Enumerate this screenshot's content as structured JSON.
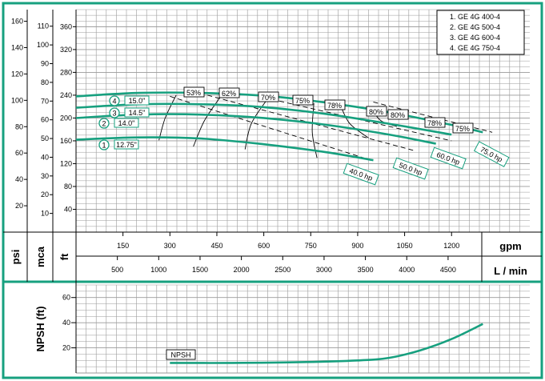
{
  "colors": {
    "frame": "#17a07f",
    "curve": "#17a07f",
    "grid": "#9a9a9a",
    "black": "#000000"
  },
  "legend": {
    "items": [
      "1. GE 4G 400-4",
      "2. GE 4G 500-4",
      "3. GE 4G 600-4",
      "4. GE 4G 750-4"
    ]
  },
  "axes": {
    "psi": {
      "label": "psi",
      "ticks": [
        "160",
        "140",
        "120",
        "100",
        "80",
        "60",
        "40",
        "20"
      ],
      "values": [
        160,
        140,
        120,
        100,
        80,
        60,
        40,
        20
      ]
    },
    "mca": {
      "label": "mca",
      "ticks": [
        "110",
        "100",
        "90",
        "80",
        "70",
        "60",
        "50",
        "40",
        "30",
        "20",
        "10"
      ],
      "values": [
        110,
        100,
        90,
        80,
        70,
        60,
        50,
        40,
        30,
        20,
        10
      ]
    },
    "ft": {
      "label": "ft",
      "ticks": [
        "360",
        "320",
        "280",
        "240",
        "200",
        "160",
        "120",
        "80",
        "40"
      ],
      "values": [
        360,
        320,
        280,
        240,
        200,
        160,
        120,
        80,
        40
      ]
    },
    "gpm": {
      "label": "gpm",
      "ticks": [
        "150",
        "300",
        "450",
        "600",
        "750",
        "900",
        "1050",
        "1200"
      ],
      "values": [
        150,
        300,
        450,
        600,
        750,
        900,
        1050,
        1200
      ]
    },
    "lmin": {
      "label": "L / min",
      "ticks": [
        "500",
        "1000",
        "1500",
        "2000",
        "2500",
        "3000",
        "3500",
        "4000",
        "4500"
      ],
      "values": [
        500,
        1000,
        1500,
        2000,
        2500,
        3000,
        3500,
        4000,
        4500
      ]
    },
    "npsh": {
      "label": "NPSH (ft)",
      "ticks": [
        "60",
        "40",
        "20"
      ],
      "values": [
        60,
        40,
        20
      ]
    }
  },
  "chart_data": [
    {
      "type": "line",
      "title": "",
      "xlabel": "gpm",
      "ylabel": "ft",
      "xlim": [
        0,
        1450
      ],
      "ylim": [
        0,
        390
      ],
      "grid": true,
      "legend_position": "top-right",
      "series": [
        {
          "name": "1",
          "impeller": "12.75\"",
          "x": [
            0,
            200,
            400,
            600,
            800,
            950
          ],
          "y": [
            162,
            166,
            164,
            154,
            140,
            126
          ]
        },
        {
          "name": "2",
          "impeller": "14.0\"",
          "x": [
            0,
            200,
            400,
            600,
            800,
            1000,
            1150
          ],
          "y": [
            200,
            206,
            206,
            200,
            188,
            171,
            155
          ]
        },
        {
          "name": "3",
          "impeller": "14.5\"",
          "x": [
            0,
            200,
            400,
            600,
            800,
            1000,
            1200
          ],
          "y": [
            218,
            224,
            224,
            219,
            207,
            190,
            171
          ]
        },
        {
          "name": "4",
          "impeller": "15.0\"",
          "x": [
            0,
            200,
            400,
            600,
            800,
            1000,
            1200,
            1300
          ],
          "y": [
            238,
            244,
            244,
            239,
            227,
            210,
            188,
            175
          ]
        }
      ],
      "efficiency_labels": [
        "53%",
        "62%",
        "70%",
        "75%",
        "78%",
        "80%",
        "80%",
        "78%",
        "75%"
      ],
      "efficiency_curves": [
        {
          "label": "53%",
          "x": [
            320,
            285,
            265
          ],
          "y": [
            240,
            200,
            161
          ]
        },
        {
          "label": "62%",
          "x": [
            460,
            410,
            375
          ],
          "y": [
            236,
            195,
            150
          ]
        },
        {
          "label": "70%",
          "x": [
            610,
            560,
            540
          ],
          "y": [
            232,
            190,
            145
          ]
        },
        {
          "label": "75%",
          "x": [
            760,
            755,
            770
          ],
          "y": [
            226,
            175,
            130
          ]
        },
        {
          "label": "78%",
          "x": [
            845,
            875,
            935
          ],
          "y": [
            222,
            190,
            165
          ]
        },
        {
          "label": "80%",
          "x": [
            945,
            975,
            1025
          ],
          "y": [
            215,
            195,
            185
          ]
        }
      ],
      "power_labels": [
        "40.0 hp",
        "50.0 hp",
        "60.0 hp",
        "75.0 hp"
      ],
      "power_lines": [
        {
          "label": "40.0 hp",
          "x": [
            300,
            920
          ],
          "y": [
            238,
            130
          ]
        },
        {
          "label": "50.0 hp",
          "x": [
            420,
            1080
          ],
          "y": [
            240,
            143
          ]
        },
        {
          "label": "60.0 hp",
          "x": [
            600,
            1200
          ],
          "y": [
            236,
            160
          ]
        },
        {
          "label": "75.0 hp",
          "x": [
            950,
            1330
          ],
          "y": [
            228,
            175
          ]
        }
      ]
    },
    {
      "type": "line",
      "title": "",
      "xlabel": "gpm",
      "ylabel": "NPSH (ft)",
      "xlim": [
        0,
        1450
      ],
      "ylim": [
        0,
        70
      ],
      "grid": true,
      "series": [
        {
          "name": "NPSH",
          "x": [
            300,
            500,
            700,
            900,
            1000,
            1100,
            1200,
            1300
          ],
          "y": [
            8,
            8,
            8.5,
            10,
            12,
            18,
            27,
            39
          ]
        }
      ]
    }
  ]
}
